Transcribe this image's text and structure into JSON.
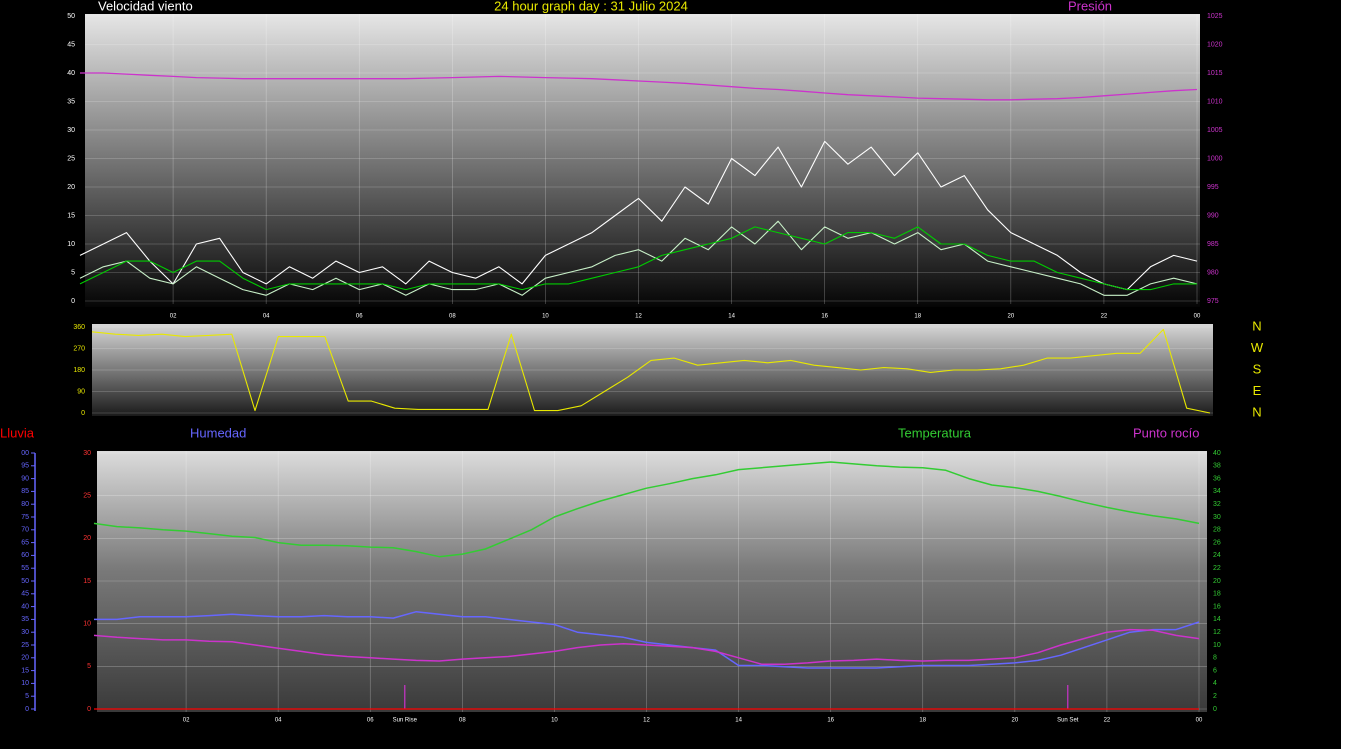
{
  "chart_data": [
    {
      "type": "line",
      "title": "24 hour graph day : 31 Julio 2024",
      "ylabel": "Velocidad viento",
      "y2label": "Presión",
      "x": [
        0,
        0.5,
        1,
        1.5,
        2,
        2.5,
        3,
        3.5,
        4,
        4.5,
        5,
        5.5,
        6,
        6.5,
        7,
        7.5,
        8,
        8.5,
        9,
        9.5,
        10,
        10.5,
        11,
        11.5,
        12,
        12.5,
        13,
        13.5,
        14,
        14.5,
        15,
        15.5,
        16,
        16.5,
        17,
        17.5,
        18,
        18.5,
        19,
        19.5,
        20,
        20.5,
        21,
        21.5,
        22,
        22.5,
        23,
        23.5,
        24
      ],
      "xlim": [
        0,
        24
      ],
      "xticks": [
        {
          "value": 2,
          "label": "02"
        },
        {
          "value": 4,
          "label": "04"
        },
        {
          "value": 6,
          "label": "06"
        },
        {
          "value": 8,
          "label": "08"
        },
        10,
        12,
        14,
        16,
        18,
        20,
        22,
        {
          "value": 24,
          "label": "00"
        }
      ],
      "ylim": [
        0,
        50
      ],
      "yticks": [
        0,
        5,
        10,
        15,
        20,
        25,
        30,
        35,
        40,
        45,
        50
      ],
      "y2lim": [
        975,
        1025
      ],
      "y2ticks": [
        975,
        980,
        985,
        990,
        995,
        1000,
        1005,
        1010,
        1015,
        1020,
        1025
      ],
      "grid": true,
      "series": [
        {
          "color": "#ffffff",
          "values": [
            8,
            10,
            12,
            7,
            3,
            10,
            11,
            5,
            3,
            6,
            4,
            7,
            5,
            6,
            3,
            7,
            5,
            4,
            6,
            3,
            8,
            10,
            12,
            15,
            18,
            14,
            20,
            17,
            25,
            22,
            27,
            20,
            28,
            24,
            27,
            22,
            26,
            20,
            22,
            16,
            12,
            10,
            8,
            5,
            3,
            2,
            6,
            8,
            7
          ]
        },
        {
          "color": "#c8f0c8",
          "values": [
            4,
            6,
            7,
            4,
            3,
            6,
            4,
            2,
            1,
            3,
            2,
            4,
            2,
            3,
            1,
            3,
            2,
            2,
            3,
            1,
            4,
            5,
            6,
            8,
            9,
            7,
            11,
            9,
            13,
            10,
            14,
            9,
            13,
            11,
            12,
            10,
            12,
            9,
            10,
            7,
            6,
            5,
            4,
            3,
            1,
            1,
            3,
            4,
            3
          ]
        },
        {
          "color": "#00cc00",
          "values": [
            3,
            5,
            7,
            7,
            5,
            7,
            7,
            4,
            2,
            3,
            3,
            3,
            3,
            3,
            2,
            3,
            3,
            3,
            3,
            2,
            3,
            3,
            4,
            5,
            6,
            8,
            9,
            10,
            11,
            13,
            12,
            11,
            10,
            12,
            12,
            11,
            13,
            10,
            10,
            8,
            7,
            7,
            5,
            4,
            3,
            2,
            2,
            3,
            3
          ]
        },
        {
          "color": "#cc33cc",
          "axis": "y2",
          "values": [
            1015,
            1015,
            1014.8,
            1014.6,
            1014.4,
            1014.2,
            1014.1,
            1014,
            1014,
            1014,
            1014,
            1014,
            1014,
            1014,
            1014,
            1014.1,
            1014.2,
            1014.3,
            1014.4,
            1014.3,
            1014.2,
            1014.1,
            1014,
            1013.8,
            1013.6,
            1013.4,
            1013.2,
            1012.9,
            1012.6,
            1012.3,
            1012.1,
            1011.8,
            1011.5,
            1011.2,
            1011,
            1010.8,
            1010.6,
            1010.5,
            1010.4,
            1010.3,
            1010.3,
            1010.4,
            1010.5,
            1010.7,
            1011,
            1011.3,
            1011.6,
            1011.9,
            1012.1
          ]
        }
      ]
    },
    {
      "type": "line",
      "x": [
        0,
        0.5,
        1,
        1.5,
        2,
        2.5,
        3,
        3.5,
        4,
        4.5,
        5,
        5.5,
        6,
        6.5,
        7,
        7.5,
        8,
        8.5,
        9,
        9.5,
        10,
        10.5,
        11,
        11.5,
        12,
        12.5,
        13,
        13.5,
        14,
        14.5,
        15,
        15.5,
        16,
        16.5,
        17,
        17.5,
        18,
        18.5,
        19,
        19.5,
        20,
        20.5,
        21,
        21.5,
        22,
        22.5,
        23,
        23.5,
        24
      ],
      "xlim": [
        0,
        24
      ],
      "ylim": [
        0,
        360
      ],
      "yticks": [
        0,
        90,
        180,
        270,
        360
      ],
      "y2lim": [
        0,
        360
      ],
      "y2ticks": [
        {
          "value": 360,
          "label": "N"
        },
        {
          "value": 270,
          "label": "W"
        },
        {
          "value": 180,
          "label": "S"
        },
        {
          "value": 90,
          "label": "E"
        },
        {
          "value": 0,
          "label": "N"
        }
      ],
      "grid": true,
      "series": [
        {
          "color": "#e8e800",
          "values": [
            340,
            330,
            325,
            330,
            320,
            325,
            330,
            10,
            320,
            320,
            320,
            50,
            50,
            20,
            15,
            15,
            15,
            15,
            330,
            10,
            10,
            30,
            90,
            150,
            220,
            230,
            200,
            210,
            220,
            210,
            220,
            200,
            190,
            180,
            190,
            185,
            170,
            180,
            180,
            185,
            200,
            230,
            230,
            240,
            250,
            250,
            350,
            20,
            0
          ]
        }
      ]
    },
    {
      "type": "line",
      "x": [
        0,
        0.5,
        1,
        1.5,
        2,
        2.5,
        3,
        3.5,
        4,
        4.5,
        5,
        5.5,
        6,
        6.5,
        7,
        7.5,
        8,
        8.5,
        9,
        9.5,
        10,
        10.5,
        11,
        11.5,
        12,
        12.5,
        13,
        13.5,
        14,
        14.5,
        15,
        15.5,
        16,
        16.5,
        17,
        17.5,
        18,
        18.5,
        19,
        19.5,
        20,
        20.5,
        21,
        21.5,
        22,
        22.5,
        23,
        23.5,
        24
      ],
      "xlim": [
        0,
        24
      ],
      "xticks": [
        {
          "value": 2,
          "label": "02"
        },
        {
          "value": 4,
          "label": "04"
        },
        {
          "value": 6,
          "label": "06"
        },
        {
          "value": 8,
          "label": "08"
        },
        10,
        12,
        14,
        16,
        18,
        20,
        22,
        {
          "value": 24,
          "label": "00"
        }
      ],
      "ylim": [
        0,
        30
      ],
      "yticks": [
        0,
        5,
        10,
        15,
        20,
        25,
        30
      ],
      "y2lim": [
        0,
        40
      ],
      "y2ticks": [
        0,
        2,
        4,
        6,
        8,
        10,
        12,
        14,
        16,
        18,
        20,
        22,
        24,
        26,
        28,
        30,
        32,
        34,
        36,
        38,
        40
      ],
      "y3lim": [
        0,
        100
      ],
      "y3ticks": [
        0,
        5,
        10,
        15,
        20,
        25,
        30,
        35,
        40,
        45,
        50,
        55,
        60,
        65,
        70,
        75,
        80,
        85,
        90,
        95,
        {
          "value": 100,
          "label": "00"
        }
      ],
      "grid": true,
      "annotations": [
        {
          "text": "Sun Rise",
          "x": 6.75
        },
        {
          "text": "Sun Set",
          "x": 21.15
        }
      ],
      "series": [
        {
          "name": "Lluvia",
          "color": "#ff0000",
          "values": [
            0,
            0,
            0,
            0,
            0,
            0,
            0,
            0,
            0,
            0,
            0,
            0,
            0,
            0,
            0,
            0,
            0,
            0,
            0,
            0,
            0,
            0,
            0,
            0,
            0,
            0,
            0,
            0,
            0,
            0,
            0,
            0,
            0,
            0,
            0,
            0,
            0,
            0,
            0,
            0,
            0,
            0,
            0,
            0,
            0,
            0,
            0,
            0,
            0
          ]
        },
        {
          "name": "Humedad",
          "color": "#6666ff",
          "axis": "y3",
          "values": [
            35,
            35,
            36,
            36,
            36,
            36.5,
            37,
            36.5,
            36,
            36,
            36.5,
            36,
            36,
            35.5,
            38,
            37,
            36,
            36,
            35,
            34,
            33,
            30,
            29,
            28,
            26,
            25,
            24,
            23,
            17,
            17,
            16.5,
            16,
            16,
            16,
            16,
            16.5,
            17,
            17,
            17,
            17.5,
            18,
            19,
            21,
            24,
            27,
            30,
            31,
            31,
            34
          ]
        },
        {
          "name": "Temperatura",
          "color": "#33cc33",
          "axis": "y2",
          "values": [
            29,
            28.5,
            28.3,
            28,
            27.8,
            27.4,
            27,
            26.8,
            26,
            25.6,
            25.6,
            25.5,
            25.3,
            25.2,
            24.6,
            23.8,
            24.2,
            25,
            26.5,
            28,
            30,
            31.3,
            32.5,
            33.5,
            34.5,
            35.2,
            36,
            36.6,
            37.4,
            37.7,
            38,
            38.3,
            38.6,
            38.3,
            38,
            37.8,
            37.7,
            37.3,
            36,
            35,
            34.6,
            34,
            33.2,
            32.3,
            31.5,
            30.8,
            30.2,
            29.7,
            29
          ]
        },
        {
          "name": "Punto rocío",
          "color": "#cc33cc",
          "axis": "y2",
          "values": [
            11.5,
            11.2,
            11,
            10.8,
            10.8,
            10.6,
            10.5,
            10,
            9.5,
            9,
            8.5,
            8.2,
            8,
            7.8,
            7.6,
            7.5,
            7.8,
            8,
            8.2,
            8.6,
            9,
            9.6,
            10,
            10.2,
            10,
            9.8,
            9.6,
            9,
            8,
            7,
            7,
            7.2,
            7.5,
            7.6,
            7.8,
            7.6,
            7.5,
            7.6,
            7.6,
            7.8,
            8,
            8.8,
            10,
            11,
            12,
            12.4,
            12.3,
            11.5,
            11
          ]
        }
      ]
    }
  ]
}
